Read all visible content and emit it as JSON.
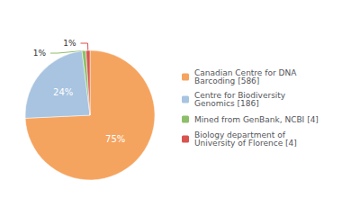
{
  "chart_data": {
    "type": "pie",
    "categories": [
      "Canadian Centre for DNA\nBarcoding [586]",
      "Centre for Biodiversity\nGenomics [186]",
      "Mined from GenBank, NCBI [4]",
      "Biology department of\nUniversity of Florence [4]"
    ],
    "values": [
      75,
      24,
      1,
      1
    ],
    "value_labels": [
      "75%",
      "24%",
      "1%",
      "1%"
    ],
    "colors": [
      "#F5A460",
      "#A8C4E0",
      "#8DBF6A",
      "#D9534F"
    ],
    "data_labels": true,
    "legend": "right"
  }
}
